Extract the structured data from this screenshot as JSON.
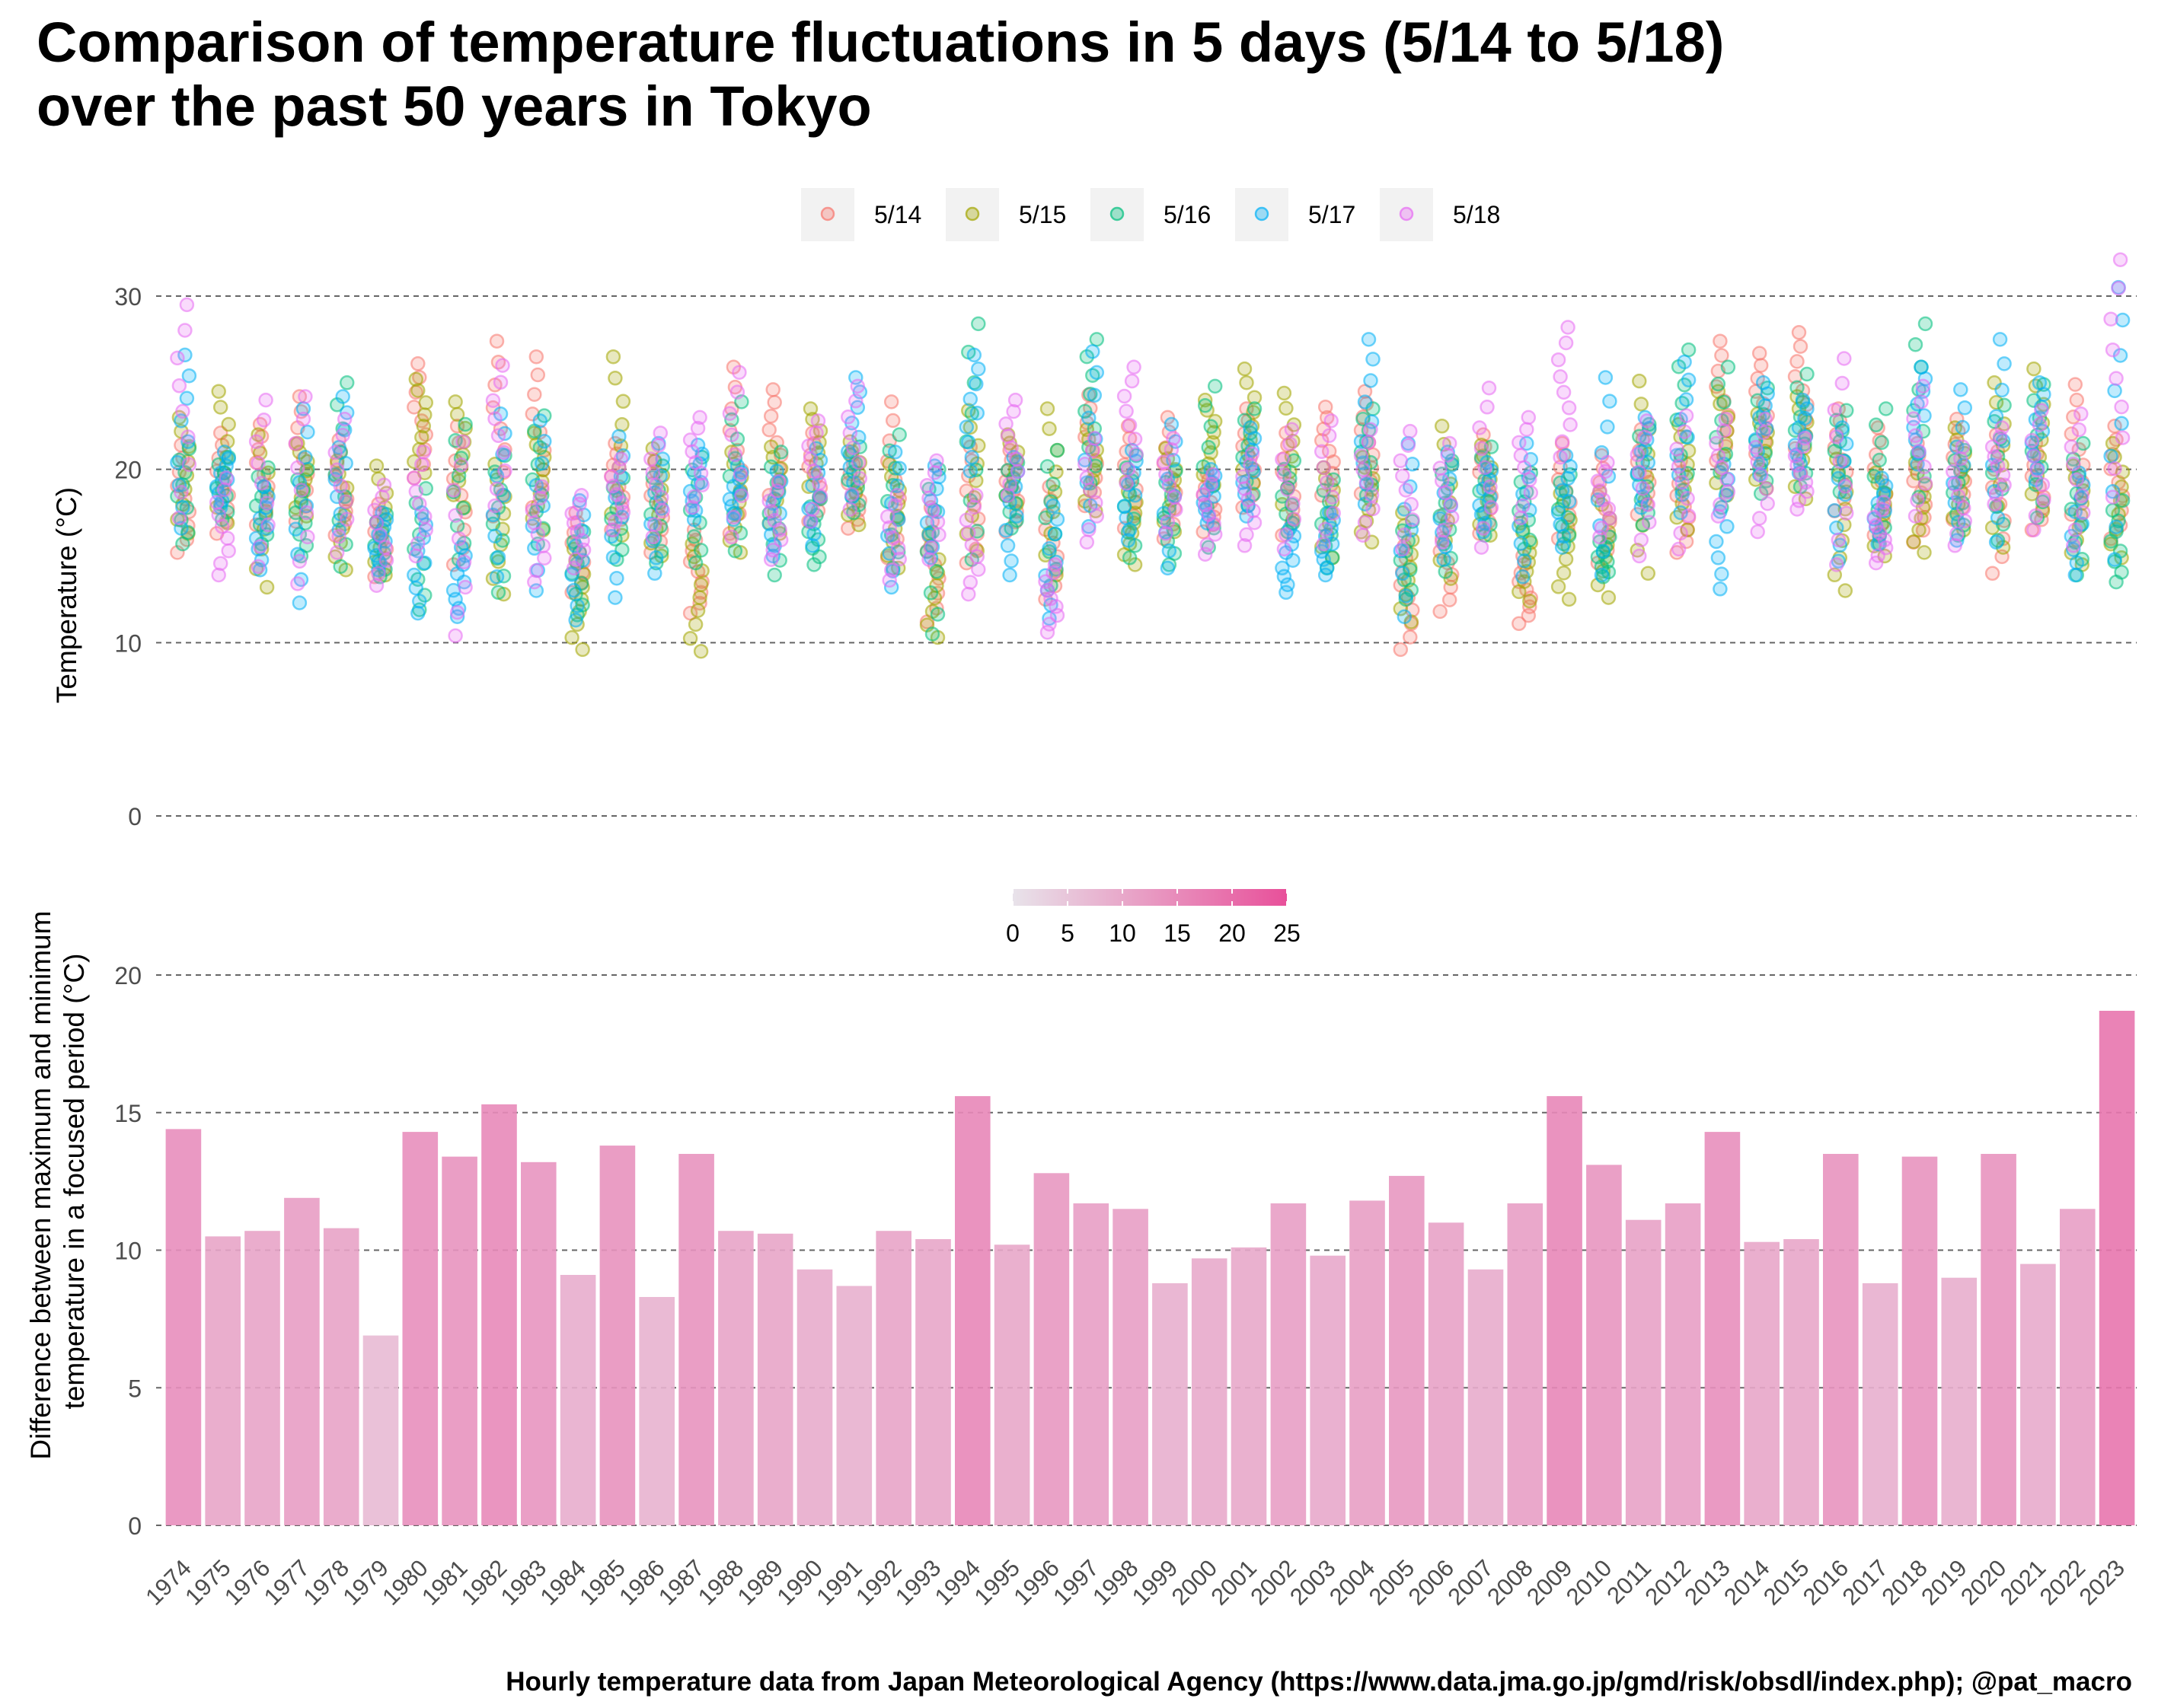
{
  "title_line1": "Comparison of temperature fluctuations in 5 days (5/14 to 5/18)",
  "title_line2": "over the past 50 years in Tokyo",
  "caption": "Hourly temperature data from Japan Meteorological Agency (https://www.data.jma.go.jp/gmd/risk/obsdl/index.php); @pat_macro",
  "chart_data": [
    {
      "type": "scatter",
      "ylabel": "Temperature (°C)",
      "ylim": [
        0,
        32
      ],
      "yticks": [
        0,
        10,
        20,
        30
      ],
      "grid": "horizontal dashed",
      "legend": "top-center",
      "series": [
        {
          "name": "5/14",
          "color": "#F8766D"
        },
        {
          "name": "5/15",
          "color": "#A3A500"
        },
        {
          "name": "5/16",
          "color": "#00BF7D"
        },
        {
          "name": "5/17",
          "color": "#00B0F6"
        },
        {
          "name": "5/18",
          "color": "#E76BF3"
        }
      ],
      "categories": [
        "1974",
        "1975",
        "1976",
        "1977",
        "1978",
        "1979",
        "1980",
        "1981",
        "1982",
        "1983",
        "1984",
        "1985",
        "1986",
        "1987",
        "1988",
        "1989",
        "1990",
        "1991",
        "1992",
        "1993",
        "1994",
        "1995",
        "1996",
        "1997",
        "1998",
        "1999",
        "2000",
        "2001",
        "2002",
        "2003",
        "2004",
        "2005",
        "2006",
        "2007",
        "2008",
        "2009",
        "2010",
        "2011",
        "2012",
        "2013",
        "2014",
        "2015",
        "2016",
        "2017",
        "2018",
        "2019",
        "2020",
        "2021",
        "2022",
        "2023"
      ],
      "daily_ranges": {
        "5/14": [
          [
            15.2,
            21.4
          ],
          [
            16.3,
            22.1
          ],
          [
            16.8,
            22.6
          ],
          [
            17.0,
            24.2
          ],
          [
            16.2,
            21.7
          ],
          [
            13.8,
            18.0
          ],
          [
            19.5,
            26.1
          ],
          [
            14.5,
            22.5
          ],
          [
            17.3,
            27.4
          ],
          [
            17.8,
            26.5
          ],
          [
            12.9,
            17.5
          ],
          [
            16.5,
            21.5
          ],
          [
            15.2,
            20.5
          ],
          [
            11.7,
            16.5
          ],
          [
            16.3,
            25.9
          ],
          [
            18.5,
            24.6
          ],
          [
            17.0,
            22.1
          ],
          [
            16.6,
            20.8
          ],
          [
            14.9,
            23.9
          ],
          [
            11.2,
            17.8
          ],
          [
            14.6,
            21.3
          ],
          [
            16.4,
            21.1
          ],
          [
            12.5,
            19.0
          ],
          [
            17.9,
            24.3
          ],
          [
            16.6,
            22.5
          ],
          [
            16.0,
            23.0
          ],
          [
            16.4,
            19.8
          ],
          [
            17.8,
            23.5
          ],
          [
            16.2,
            22.1
          ],
          [
            18.5,
            23.6
          ],
          [
            18.6,
            24.5
          ],
          [
            9.6,
            15.6
          ],
          [
            11.8,
            17.4
          ],
          [
            16.3,
            22.0
          ],
          [
            11.1,
            15.0
          ],
          [
            16.0,
            21.5
          ],
          [
            14.6,
            20.8
          ],
          [
            17.4,
            22.3
          ],
          [
            15.2,
            20.5
          ],
          [
            20.5,
            27.4
          ],
          [
            20.9,
            26.7
          ],
          [
            21.2,
            27.9
          ],
          [
            17.6,
            23.5
          ],
          [
            16.2,
            22.4
          ],
          [
            15.8,
            21.5
          ],
          [
            17.1,
            22.9
          ],
          [
            14.0,
            22.0
          ],
          [
            16.5,
            21.5
          ],
          [
            17.4,
            24.9
          ],
          [
            16.0,
            22.5
          ]
        ],
        "5/15": [
          [
            16.3,
            23.0
          ],
          [
            16.9,
            24.5
          ],
          [
            13.2,
            22.0
          ],
          [
            17.3,
            21.5
          ],
          [
            14.2,
            20.5
          ],
          [
            13.9,
            20.2
          ],
          [
            19.8,
            25.2
          ],
          [
            17.8,
            23.9
          ],
          [
            12.8,
            20.3
          ],
          [
            16.5,
            22.1
          ],
          [
            9.6,
            15.4
          ],
          [
            16.2,
            26.5
          ],
          [
            15.0,
            21.2
          ],
          [
            9.5,
            15.7
          ],
          [
            15.2,
            21.0
          ],
          [
            16.3,
            21.3
          ],
          [
            18.4,
            23.5
          ],
          [
            16.8,
            21.6
          ],
          [
            14.3,
            20.3
          ],
          [
            10.3,
            16.3
          ],
          [
            15.3,
            23.4
          ],
          [
            18.0,
            22.0
          ],
          [
            13.9,
            23.5
          ],
          [
            17.6,
            22.3
          ],
          [
            14.5,
            19.3
          ],
          [
            16.4,
            21.2
          ],
          [
            19.1,
            24.0
          ],
          [
            19.2,
            25.8
          ],
          [
            17.1,
            24.4
          ],
          [
            14.9,
            20.1
          ],
          [
            15.8,
            20.7
          ],
          [
            11.2,
            17.5
          ],
          [
            13.7,
            22.5
          ],
          [
            16.2,
            21.4
          ],
          [
            12.4,
            16.9
          ],
          [
            12.5,
            18.6
          ],
          [
            12.6,
            18.7
          ],
          [
            14.0,
            25.1
          ],
          [
            16.5,
            22.6
          ],
          [
            18.5,
            24.5
          ],
          [
            18.9,
            23.2
          ],
          [
            18.3,
            24.2
          ],
          [
            13.0,
            20.6
          ],
          [
            15.0,
            19.8
          ],
          [
            15.2,
            20.4
          ],
          [
            16.5,
            22.4
          ],
          [
            15.5,
            25.0
          ],
          [
            17.6,
            25.8
          ],
          [
            14.5,
            20.2
          ],
          [
            14.9,
            21.5
          ]
        ],
        "5/16": [
          [
            15.7,
            21.2
          ],
          [
            17.1,
            20.7
          ],
          [
            15.7,
            20.1
          ],
          [
            15.0,
            20.0
          ],
          [
            14.4,
            25.0
          ],
          [
            13.8,
            17.4
          ],
          [
            11.9,
            18.9
          ],
          [
            14.8,
            22.6
          ],
          [
            12.9,
            20.8
          ],
          [
            15.7,
            23.1
          ],
          [
            11.6,
            16.4
          ],
          [
            14.8,
            19.5
          ],
          [
            14.6,
            20.2
          ],
          [
            14.6,
            20.7
          ],
          [
            15.3,
            23.9
          ],
          [
            13.9,
            21.0
          ],
          [
            14.5,
            18.3
          ],
          [
            17.5,
            21.3
          ],
          [
            14.3,
            22.0
          ],
          [
            10.5,
            20.0
          ],
          [
            14.8,
            28.4
          ],
          [
            16.6,
            20.4
          ],
          [
            13.3,
            21.1
          ],
          [
            19.2,
            27.5
          ],
          [
            14.9,
            20.8
          ],
          [
            14.5,
            19.9
          ],
          [
            15.5,
            24.8
          ],
          [
            17.9,
            23.5
          ],
          [
            16.4,
            20.5
          ],
          [
            14.3,
            19.4
          ],
          [
            18.5,
            23.5
          ],
          [
            12.5,
            17.0
          ],
          [
            14.1,
            20.5
          ],
          [
            16.2,
            21.3
          ],
          [
            15.4,
            19.8
          ],
          [
            15.7,
            19.7
          ],
          [
            13.8,
            16.1
          ],
          [
            16.8,
            22.6
          ],
          [
            18.8,
            26.9
          ],
          [
            17.8,
            25.9
          ],
          [
            18.6,
            24.7
          ],
          [
            19.0,
            25.5
          ],
          [
            18.7,
            23.4
          ],
          [
            15.7,
            23.5
          ],
          [
            18.4,
            28.4
          ],
          [
            16.2,
            21.1
          ],
          [
            15.9,
            23.7
          ],
          [
            17.2,
            24.9
          ],
          [
            13.9,
            21.5
          ],
          [
            13.5,
            18.2
          ]
        ],
        "5/17": [
          [
            16.6,
            26.6
          ],
          [
            17.8,
            21.0
          ],
          [
            14.2,
            19.0
          ],
          [
            12.3,
            23.5
          ],
          [
            16.5,
            24.2
          ],
          [
            14.2,
            17.5
          ],
          [
            11.7,
            17.5
          ],
          [
            11.5,
            15.5
          ],
          [
            13.8,
            23.2
          ],
          [
            13.0,
            22.8
          ],
          [
            11.3,
            18.2
          ],
          [
            12.6,
            21.9
          ],
          [
            14.0,
            21.5
          ],
          [
            17.1,
            21.4
          ],
          [
            17.1,
            20.2
          ],
          [
            15.0,
            19.9
          ],
          [
            15.6,
            21.2
          ],
          [
            18.4,
            25.3
          ],
          [
            13.2,
            21.0
          ],
          [
            14.9,
            20.2
          ],
          [
            19.9,
            26.6
          ],
          [
            13.9,
            20.7
          ],
          [
            11.4,
            17.9
          ],
          [
            16.7,
            26.8
          ],
          [
            15.9,
            21.1
          ],
          [
            14.3,
            22.6
          ],
          [
            16.9,
            20.0
          ],
          [
            17.3,
            22.4
          ],
          [
            12.9,
            16.6
          ],
          [
            13.9,
            17.5
          ],
          [
            18.0,
            27.5
          ],
          [
            11.5,
            21.5
          ],
          [
            14.8,
            21.0
          ],
          [
            16.4,
            20.4
          ],
          [
            13.8,
            21.5
          ],
          [
            15.5,
            20.8
          ],
          [
            13.9,
            25.3
          ],
          [
            17.8,
            23.0
          ],
          [
            17.5,
            26.2
          ],
          [
            13.1,
            20.3
          ],
          [
            19.7,
            25.0
          ],
          [
            19.8,
            24.0
          ],
          [
            14.7,
            22.4
          ],
          [
            15.7,
            19.5
          ],
          [
            20.3,
            25.9
          ],
          [
            15.9,
            24.6
          ],
          [
            15.8,
            27.5
          ],
          [
            19.4,
            25.0
          ],
          [
            13.9,
            19.8
          ],
          [
            14.8,
            30.5
          ]
        ],
        "5/18": [
          [
            17.2,
            29.5
          ],
          [
            13.9,
            19.5
          ],
          [
            14.4,
            24.0
          ],
          [
            13.4,
            24.2
          ],
          [
            15.2,
            22.9
          ],
          [
            13.3,
            19.1
          ],
          [
            15.0,
            21.0
          ],
          [
            10.4,
            21.6
          ],
          [
            17.9,
            26.0
          ],
          [
            13.5,
            19.0
          ],
          [
            14.3,
            18.5
          ],
          [
            16.5,
            20.6
          ],
          [
            16.1,
            22.1
          ],
          [
            17.8,
            23.0
          ],
          [
            16.1,
            25.6
          ],
          [
            14.8,
            19.3
          ],
          [
            17.0,
            22.8
          ],
          [
            17.7,
            24.8
          ],
          [
            13.6,
            18.5
          ],
          [
            14.8,
            20.5
          ],
          [
            12.8,
            18.5
          ],
          [
            18.5,
            24.0
          ],
          [
            10.6,
            14.5
          ],
          [
            15.8,
            21.8
          ],
          [
            19.2,
            25.9
          ],
          [
            16.3,
            21.8
          ],
          [
            15.1,
            19.7
          ],
          [
            15.6,
            20.9
          ],
          [
            15.4,
            22.3
          ],
          [
            15.7,
            22.8
          ],
          [
            16.2,
            22.3
          ],
          [
            15.4,
            22.2
          ],
          [
            15.8,
            21.5
          ],
          [
            15.5,
            24.7
          ],
          [
            17.2,
            23.0
          ],
          [
            20.7,
            28.2
          ],
          [
            16.1,
            20.4
          ],
          [
            15.0,
            22.8
          ],
          [
            15.4,
            23.1
          ],
          [
            17.3,
            22.9
          ],
          [
            16.4,
            22.9
          ],
          [
            17.7,
            21.8
          ],
          [
            14.5,
            26.4
          ],
          [
            14.6,
            18.1
          ],
          [
            17.3,
            24.8
          ],
          [
            15.6,
            21.3
          ],
          [
            18.0,
            22.4
          ],
          [
            16.5,
            23.4
          ],
          [
            15.6,
            23.2
          ],
          [
            18.4,
            32.1
          ]
        ]
      }
    },
    {
      "type": "bar",
      "ylabel_line1": "Difference between maximum and minimum",
      "ylabel_line2": "temperature in a focused period (°C)",
      "ylim": [
        0,
        20.5
      ],
      "yticks": [
        0,
        5,
        10,
        15,
        20
      ],
      "grid": "horizontal dashed",
      "legend": "top-center",
      "colorbar": {
        "min": 0,
        "max": 25,
        "ticks": [
          "0",
          "5",
          "10",
          "15",
          "20",
          "25"
        ],
        "low_color": "#E8E3EA",
        "high_color": "#E8509A"
      },
      "categories": [
        "1974",
        "1975",
        "1976",
        "1977",
        "1978",
        "1979",
        "1980",
        "1981",
        "1982",
        "1983",
        "1984",
        "1985",
        "1986",
        "1987",
        "1988",
        "1989",
        "1990",
        "1991",
        "1992",
        "1993",
        "1994",
        "1995",
        "1996",
        "1997",
        "1998",
        "1999",
        "2000",
        "2001",
        "2002",
        "2003",
        "2004",
        "2005",
        "2006",
        "2007",
        "2008",
        "2009",
        "2010",
        "2011",
        "2012",
        "2013",
        "2014",
        "2015",
        "2016",
        "2017",
        "2018",
        "2019",
        "2020",
        "2021",
        "2022",
        "2023"
      ],
      "values": [
        14.4,
        10.5,
        10.7,
        11.9,
        10.8,
        6.9,
        14.3,
        13.4,
        15.3,
        13.2,
        9.1,
        13.8,
        8.3,
        13.5,
        10.7,
        10.6,
        9.3,
        8.7,
        10.7,
        10.4,
        15.6,
        10.2,
        12.8,
        11.7,
        11.5,
        8.8,
        9.7,
        10.1,
        11.7,
        9.8,
        11.8,
        12.7,
        11.0,
        9.3,
        11.7,
        15.6,
        13.1,
        11.1,
        11.7,
        14.3,
        10.3,
        10.4,
        13.5,
        8.8,
        13.4,
        9.0,
        13.5,
        9.5,
        11.5,
        18.7
      ]
    }
  ]
}
